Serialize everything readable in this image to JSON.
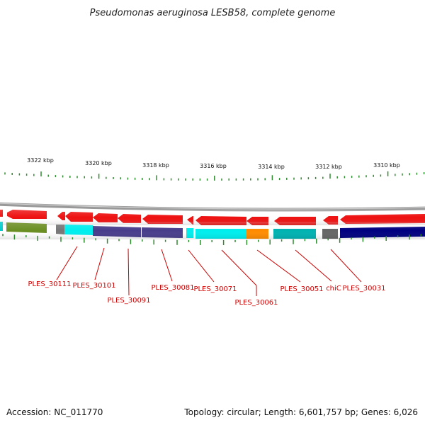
{
  "title": "Pseudomonas aeruginosa LESB58, complete genome",
  "footer": {
    "accession": "Accession: NC_011770",
    "summary": "Topology: circular; Length: 6,601,757 bp; Genes: 6,026"
  },
  "colors": {
    "label": "#cc0000",
    "gene_red": "#ee1111",
    "backbone": "#999999",
    "tick_green": "#2e8b2e"
  },
  "kbp_labels": [
    "3322 kbp",
    "3320 kbp",
    "3318 kbp",
    "3316 kbp",
    "3314 kbp",
    "3312 kbp",
    "3310 kbp"
  ],
  "gene_labels": [
    "PLES_30111",
    "PLES_30101",
    "PLES_30091",
    "PLES_30081",
    "PLES_30071",
    "PLES_30061",
    "PLES_30051",
    "chiC",
    "PLES_30031"
  ]
}
